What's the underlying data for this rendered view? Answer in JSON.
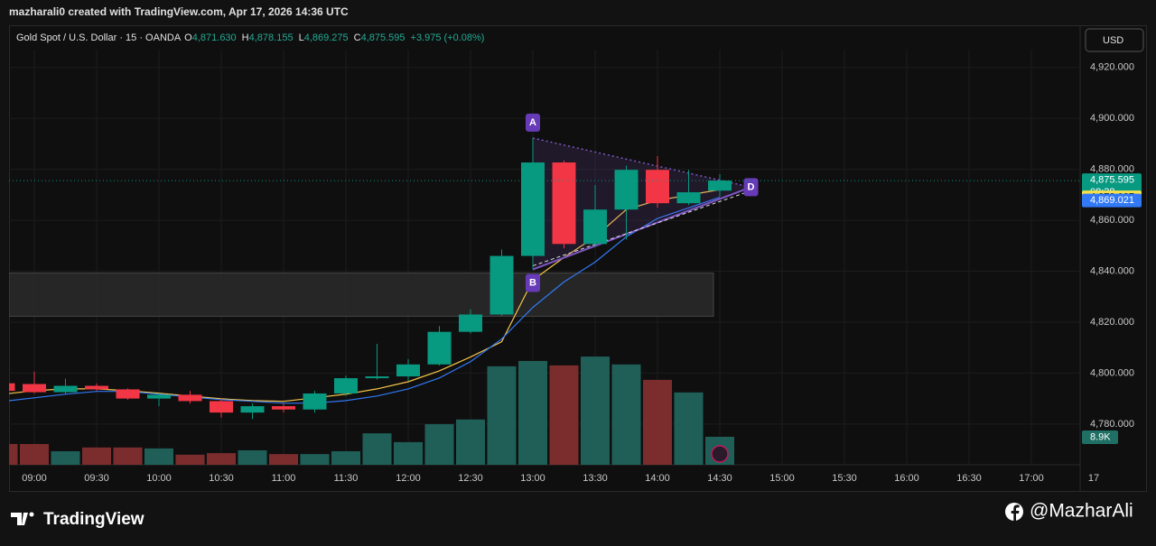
{
  "header": {
    "credit": "mazharali0 created with TradingView.com, Apr 17, 2026 14:36 UTC"
  },
  "chart_data": {
    "type": "candlestick",
    "legend": {
      "symbol": "Gold Spot / U.S. Dollar · 15 · OANDA",
      "fields": [
        {
          "key": "O",
          "value": "4,871.630"
        },
        {
          "key": "H",
          "value": "4,878.155"
        },
        {
          "key": "L",
          "value": "4,869.275"
        },
        {
          "key": "C",
          "value": "4,875.595"
        }
      ],
      "change": "+3.975 (+0.08%)"
    },
    "currency_button": "USD",
    "x": [
      "08:45",
      "09:00",
      "09:15",
      "09:30",
      "09:45",
      "10:00",
      "10:15",
      "10:30",
      "10:45",
      "11:00",
      "11:15",
      "11:30",
      "11:45",
      "12:00",
      "12:15",
      "12:30",
      "12:45",
      "13:00",
      "13:15",
      "13:30",
      "13:45",
      "14:00",
      "14:15",
      "14:30"
    ],
    "open": [
      4796,
      4795.7,
      4792.5,
      4795,
      4793.6,
      4790,
      4791.5,
      4789,
      4784.5,
      4787,
      4785.7,
      4792,
      4798,
      4798.7,
      4803.4,
      4816.2,
      4823,
      4846,
      4882.7,
      4850.7,
      4864.2,
      4879.8,
      4866.7,
      4871.63
    ],
    "high": [
      4797,
      4800.6,
      4797.8,
      4796,
      4794,
      4792,
      4793,
      4790,
      4788,
      4788,
      4793,
      4799,
      4811.5,
      4805.5,
      4818.5,
      4825,
      4848.5,
      4892.3,
      4883.5,
      4873.8,
      4881.5,
      4885.2,
      4879.8,
      4878.155
    ],
    "low": [
      4792,
      4792,
      4791.5,
      4793,
      4789.5,
      4787,
      4788,
      4782.5,
      4782,
      4784.5,
      4784.5,
      4791,
      4797.5,
      4797,
      4803,
      4815.5,
      4822.5,
      4840.7,
      4849,
      4849.5,
      4852.5,
      4865,
      4866,
      4869.275
    ],
    "close": [
      4793,
      4792.5,
      4795,
      4793.6,
      4790,
      4791.5,
      4789,
      4784.5,
      4787,
      4785.7,
      4792,
      4798,
      4798.7,
      4803.4,
      4816.2,
      4823,
      4846,
      4882.7,
      4850.7,
      4864.2,
      4879.8,
      4866.7,
      4871,
      4875.595
    ],
    "up_color": "#089981",
    "down_color": "#f23645",
    "moving_averages": [
      {
        "color": "#f7c548",
        "values": [
          4791.7,
          4793.1,
          4793.8,
          4793.8,
          4793.1,
          4792.1,
          4791.0,
          4789.9,
          4789.2,
          4788.9,
          4790.3,
          4791.7,
          4793.8,
          4796.6,
          4800.9,
          4806.3,
          4812.3,
          4836.5,
          4845.4,
          4853.5,
          4864.2,
          4867.8,
          4869.9,
          4872.037
        ]
      },
      {
        "color": "#3179f5",
        "values": [
          4788.9,
          4790.3,
          4791.7,
          4792.8,
          4792.8,
          4791.7,
          4790.6,
          4789.6,
          4788.9,
          4788.2,
          4788.2,
          4789.2,
          4791.0,
          4793.8,
          4798.1,
          4804.5,
          4813.4,
          4825.8,
          4835.8,
          4843.6,
          4853.5,
          4860.7,
          4864.9,
          4869.021
        ]
      }
    ],
    "volume": {
      "values": [
        6.6,
        6.6,
        4.3,
        5.5,
        5.5,
        5.2,
        3.2,
        3.7,
        4.6,
        3.4,
        3.4,
        4.3,
        10.0,
        7.2,
        12.9,
        14.4,
        31.3,
        33.0,
        31.6,
        34.4,
        31.9,
        27.0,
        23.0,
        8.9
      ],
      "lim": [
        0,
        35
      ],
      "up_color": "#1f5f58",
      "down_color": "#7b2d2d",
      "last_label": {
        "value": 8.9,
        "label": "8.9K"
      }
    },
    "ylim": [
      4764,
      4927
    ],
    "yticks": [
      {
        "value": 4780,
        "label": "4,780.000"
      },
      {
        "value": 4800,
        "label": "4,800.000"
      },
      {
        "value": 4820,
        "label": "4,820.000"
      },
      {
        "value": 4840,
        "label": "4,840.000"
      },
      {
        "value": 4860,
        "label": "4,860.000"
      },
      {
        "value": 4880,
        "label": "4,880.000"
      },
      {
        "value": 4900,
        "label": "4,900.000"
      },
      {
        "value": 4920,
        "label": "4,920.000"
      }
    ],
    "xticks": [
      "09:00",
      "09:30",
      "10:00",
      "10:30",
      "11:00",
      "11:30",
      "12:00",
      "12:30",
      "13:00",
      "13:30",
      "14:00",
      "14:30",
      "15:00",
      "15:30",
      "16:00",
      "16:30",
      "17:00",
      "17"
    ],
    "grid": true,
    "zone": [
      4822.3,
      4839.3
    ],
    "pattern": [
      {
        "label": "A",
        "x": "13:00",
        "price": 4892.3
      },
      {
        "label": "B",
        "x": "13:00",
        "price": 4840.7
      },
      {
        "label": "D",
        "x": "14:45",
        "price": 4873
      }
    ],
    "price_tags": [
      {
        "value": 4875.595,
        "label": "4,875.595",
        "sub": "08:38",
        "color": "#089981"
      },
      {
        "value": 4872.037,
        "label": "4,872.037",
        "color": "#f7e04b"
      },
      {
        "value": 4869.021,
        "label": "4,869.021",
        "color": "#3179f5"
      }
    ]
  },
  "footer": {
    "brand": "TradingView",
    "handle": "@MazharAli"
  }
}
